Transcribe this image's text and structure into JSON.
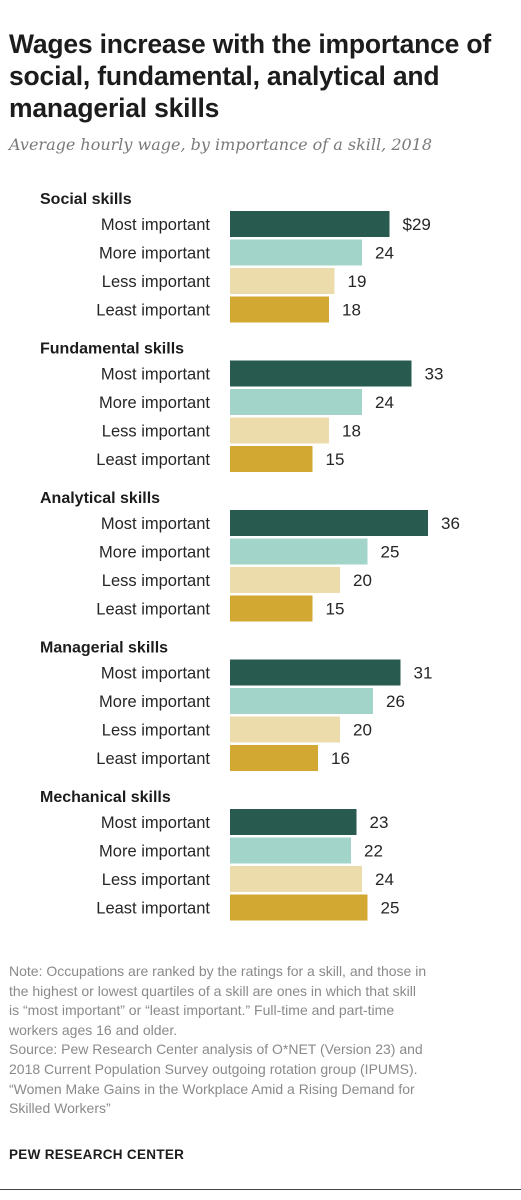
{
  "title": "Wages increase with the importance of social, fundamental, analytical and managerial skills",
  "subtitle": "Average hourly wage, by importance of a skill, 2018",
  "chart_data": {
    "type": "bar",
    "orientation": "horizontal",
    "categories": [
      "Most important",
      "More important",
      "Less important",
      "Least important"
    ],
    "colors": [
      "#285a4f",
      "#a3d4ca",
      "#ecdcab",
      "#d2a832"
    ],
    "value_prefix_first": "$",
    "xlim": [
      0,
      36
    ],
    "grid": false,
    "groups": [
      {
        "name": "Social skills",
        "values": [
          29,
          24,
          19,
          18
        ]
      },
      {
        "name": "Fundamental skills",
        "values": [
          33,
          24,
          18,
          15
        ]
      },
      {
        "name": "Analytical skills",
        "values": [
          36,
          25,
          20,
          15
        ]
      },
      {
        "name": "Managerial skills",
        "values": [
          31,
          26,
          20,
          16
        ]
      },
      {
        "name": "Mechanical skills",
        "values": [
          23,
          22,
          24,
          25
        ]
      }
    ]
  },
  "note_lines": [
    "Note: Occupations are ranked by the ratings for a skill, and those in",
    "the highest or lowest quartiles of a skill are ones in which that skill",
    "is “most important” or “least important.” Full-time and part-time",
    "workers ages 16 and older.",
    "Source: Pew Research Center analysis of O*NET (Version 23) and",
    "2018 Current Population Survey outgoing rotation group (IPUMS).",
    "“Women Make Gains in the Workplace Amid a Rising Demand for",
    "Skilled Workers”"
  ],
  "brand": "PEW RESEARCH CENTER"
}
